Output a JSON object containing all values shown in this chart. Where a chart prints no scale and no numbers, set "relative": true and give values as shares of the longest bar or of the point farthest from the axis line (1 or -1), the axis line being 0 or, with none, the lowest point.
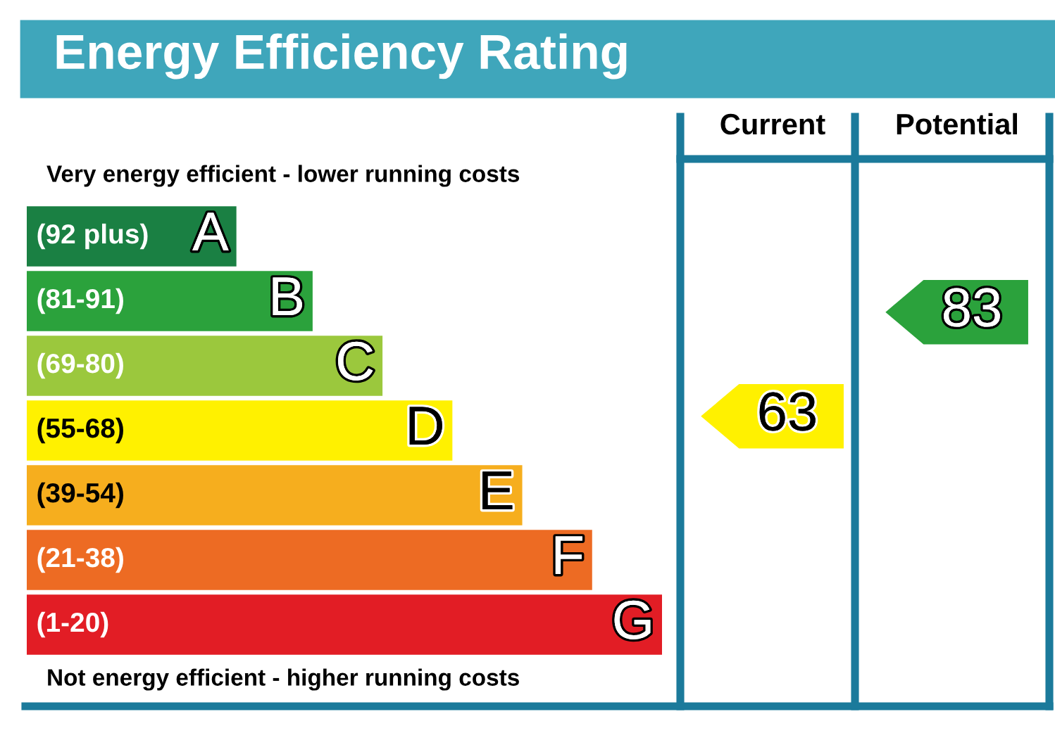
{
  "chart_data": [
    {
      "type": "bar",
      "orientation": "horizontal",
      "relative": true,
      "title": "Energy Efficiency Rating",
      "categories": [
        "(92 plus)",
        "(81-91)",
        "(69-80)",
        "(55-68)",
        "(39-54)",
        "(21-38)",
        "(1-20)"
      ],
      "values": [
        0.33,
        0.45,
        0.56,
        0.67,
        0.78,
        0.89,
        1.0
      ],
      "colors": [
        "#1a8043",
        "#2ba23c",
        "#9bc83d",
        "#fff100",
        "#f6ae1e",
        "#ed6b23",
        "#e21d25"
      ],
      "annotations": [
        "Very energy efficient - lower running costs",
        "Not energy efficient - higher running costs",
        {
          "text": "A",
          "x": 0.33,
          "y": "(92 plus)"
        },
        {
          "text": "B",
          "x": 0.45,
          "y": "(81-91)"
        },
        {
          "text": "C",
          "x": 0.56,
          "y": "(69-80)"
        },
        {
          "text": "D",
          "x": 0.67,
          "y": "(55-68)"
        },
        {
          "text": "E",
          "x": 0.78,
          "y": "(39-54)"
        },
        {
          "text": "F",
          "x": 0.89,
          "y": "(21-38)"
        },
        {
          "text": "G",
          "x": 1.0,
          "y": "(1-20)"
        }
      ]
    },
    {
      "type": "other",
      "categories": [
        "Current",
        "Potential"
      ],
      "values": [
        63,
        83
      ],
      "colors": [
        "#fff100",
        "#2ba23c"
      ],
      "data_labels": true
    }
  ]
}
